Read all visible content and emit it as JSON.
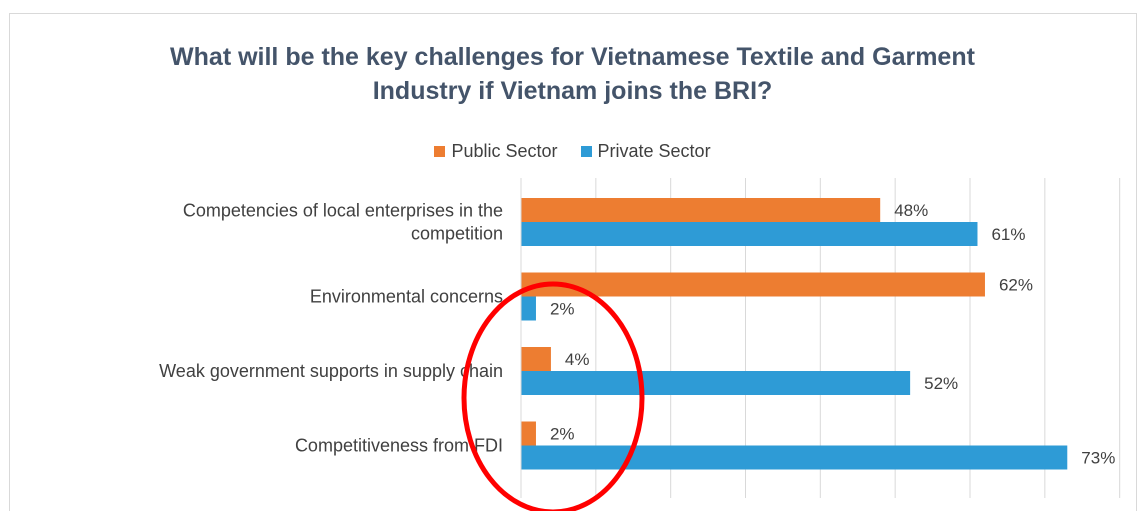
{
  "chart_data": {
    "type": "bar",
    "orientation": "horizontal",
    "title_lines": [
      "What will be the key challenges for Vietnamese Textile and Garment",
      "Industry if Vietnam joins the BRI?"
    ],
    "categories": [
      [
        "Competencies of local enterprises in the",
        "competition"
      ],
      [
        "Environmental concerns"
      ],
      [
        "Weak government supports in supply chain"
      ],
      [
        "Competitiveness from FDI"
      ]
    ],
    "series": [
      {
        "name": "Public Sector",
        "color": "#ed7d31",
        "values": [
          48,
          62,
          4,
          2
        ],
        "labels": [
          "48%",
          "62%",
          "4%",
          "2%"
        ]
      },
      {
        "name": "Private Sector",
        "color": "#2e9bd6",
        "values": [
          61,
          2,
          52,
          73
        ],
        "labels": [
          "61%",
          "2%",
          "52%",
          "73%"
        ]
      }
    ],
    "xlim": [
      0,
      80
    ],
    "unit": "%",
    "grid": "vertical",
    "legend_position": "top",
    "annotation": {
      "shape": "ellipse",
      "color": "#ff0000"
    }
  }
}
